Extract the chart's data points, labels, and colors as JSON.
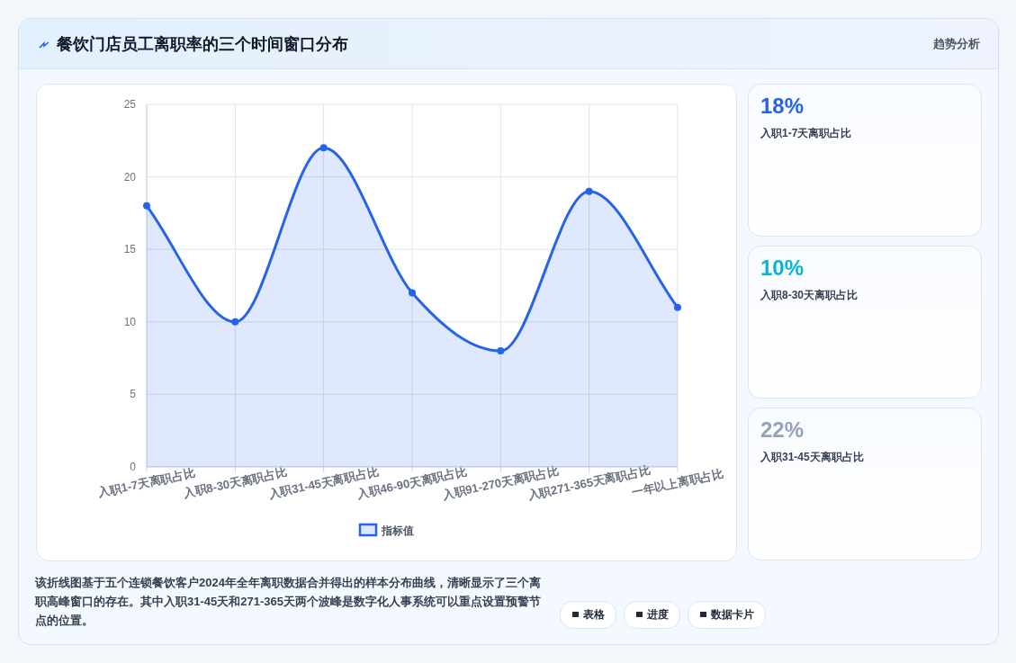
{
  "chart_data": [
    {
      "type": "area",
      "title": "餐饮门店员工离职率的三个时间窗口分布",
      "categories": [
        "入职1-7天离职占比",
        "入职8-30天离职占比",
        "入职31-45天离职占比",
        "入职46-90天离职占比",
        "入职91-270天离职占比",
        "入职271-365天离职占比",
        "一年以上离职占比"
      ],
      "series": [
        {
          "name": "指标值",
          "color": "#2563eb",
          "values": [
            18,
            10,
            22,
            12,
            8,
            19,
            11
          ]
        }
      ],
      "ylim": [
        0,
        25
      ],
      "yticks": [
        0,
        5,
        10,
        15,
        20,
        25
      ],
      "grid": true,
      "legend": "bottom",
      "marker": "circle",
      "annotations": [
        "该折线图基于五个连锁餐饮客户2024年全年离职数据合并得出的样本分布曲线，清晰显示了三个离职高峰窗口的存在。其中入职31-45天和271-365天两个波峰是数字化人事系统可以重点设置预警节点的位置。"
      ]
    },
    {
      "type": "other",
      "title": "趋势分析",
      "annotations": [
        "18%",
        "入职1-7天离职占比",
        "10%",
        "入职8-30天离职占比",
        "22%",
        "入职31-45天离职占比"
      ]
    },
    {
      "type": "other",
      "annotations": [
        "表格",
        "进度",
        "数据卡片"
      ]
    }
  ]
}
